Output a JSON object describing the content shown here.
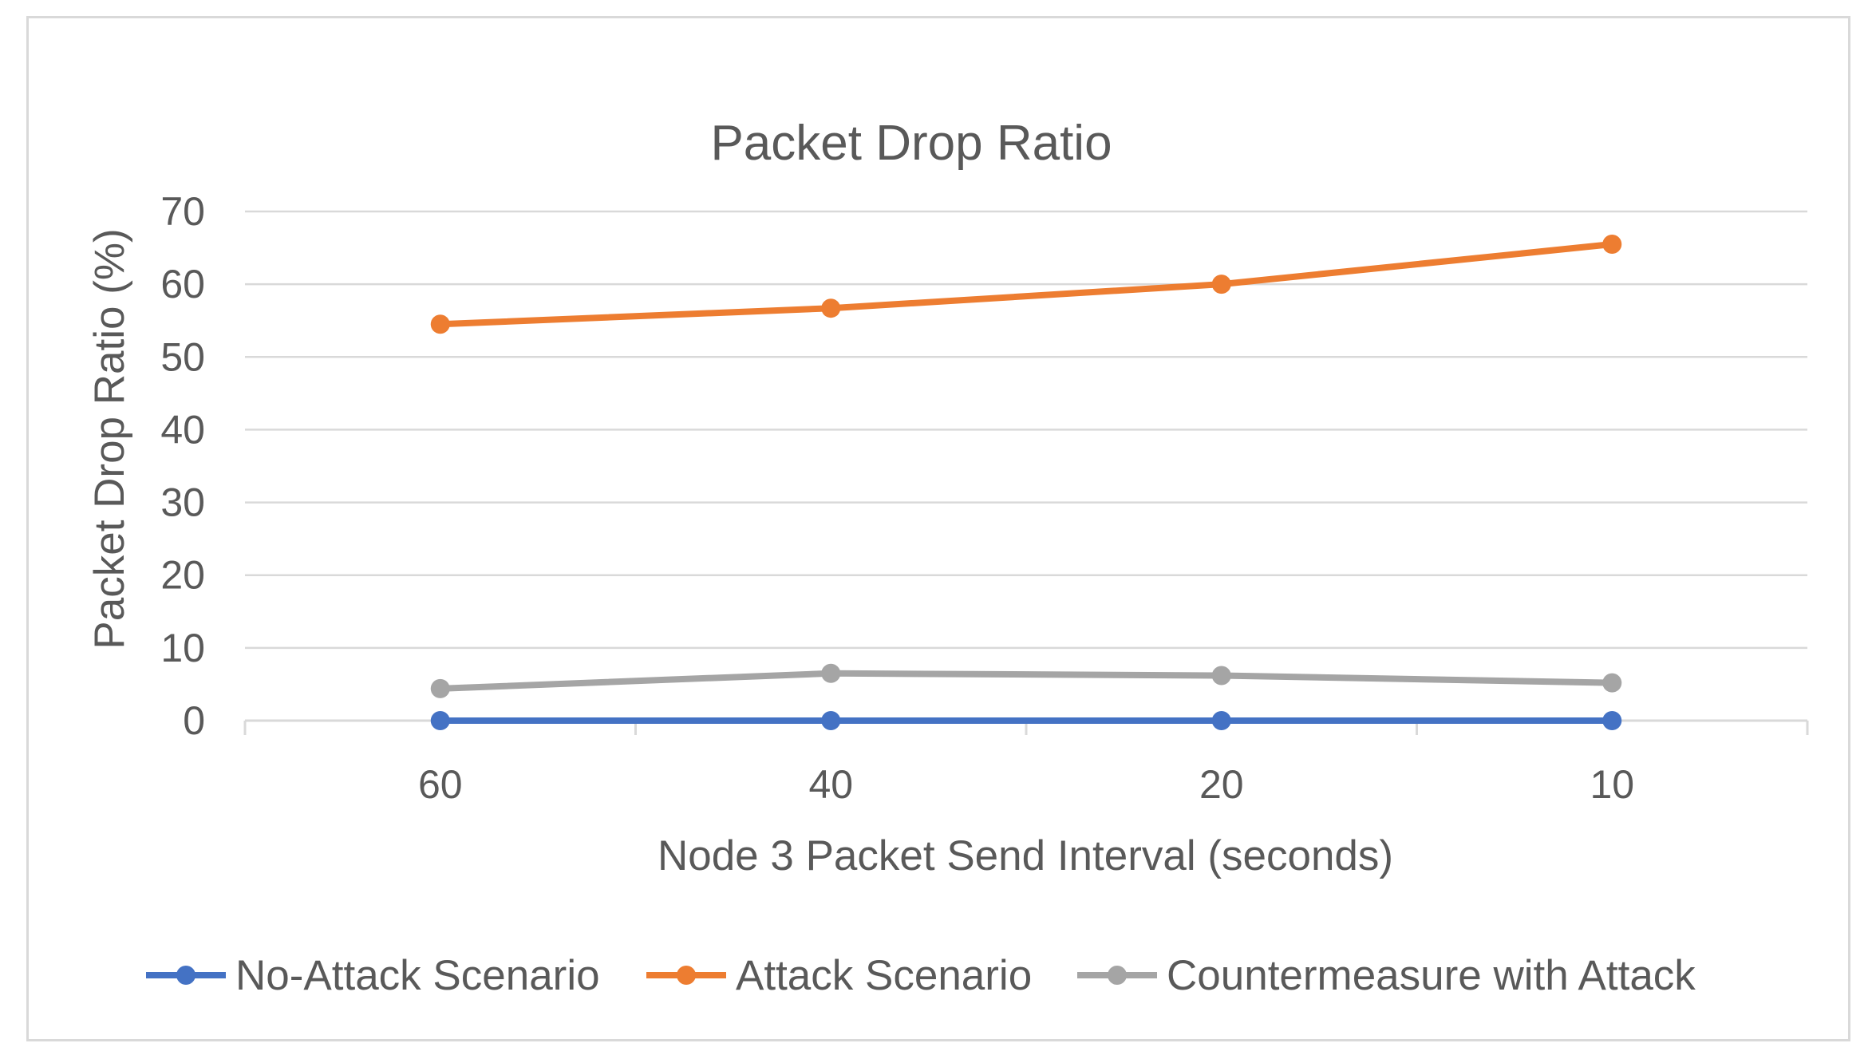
{
  "chart_data": {
    "type": "line",
    "title": "Packet Drop Ratio",
    "xlabel": "Node 3 Packet Send Interval (seconds)",
    "ylabel": "Packet Drop Ratio (%)",
    "categories": [
      "60",
      "40",
      "20",
      "10"
    ],
    "ylim": [
      0,
      70
    ],
    "yticks": [
      0,
      10,
      20,
      30,
      40,
      50,
      60,
      70
    ],
    "grid": true,
    "legend_position": "bottom",
    "series": [
      {
        "name": "No-Attack Scenario",
        "color": "#4472c4",
        "values": [
          0,
          0,
          0,
          0
        ]
      },
      {
        "name": "Attack Scenario",
        "color": "#ed7d31",
        "values": [
          54.5,
          56.7,
          60,
          65.5
        ]
      },
      {
        "name": "Countermeasure with Attack",
        "color": "#a5a5a5",
        "values": [
          4.4,
          6.5,
          6.2,
          5.2
        ]
      }
    ]
  }
}
